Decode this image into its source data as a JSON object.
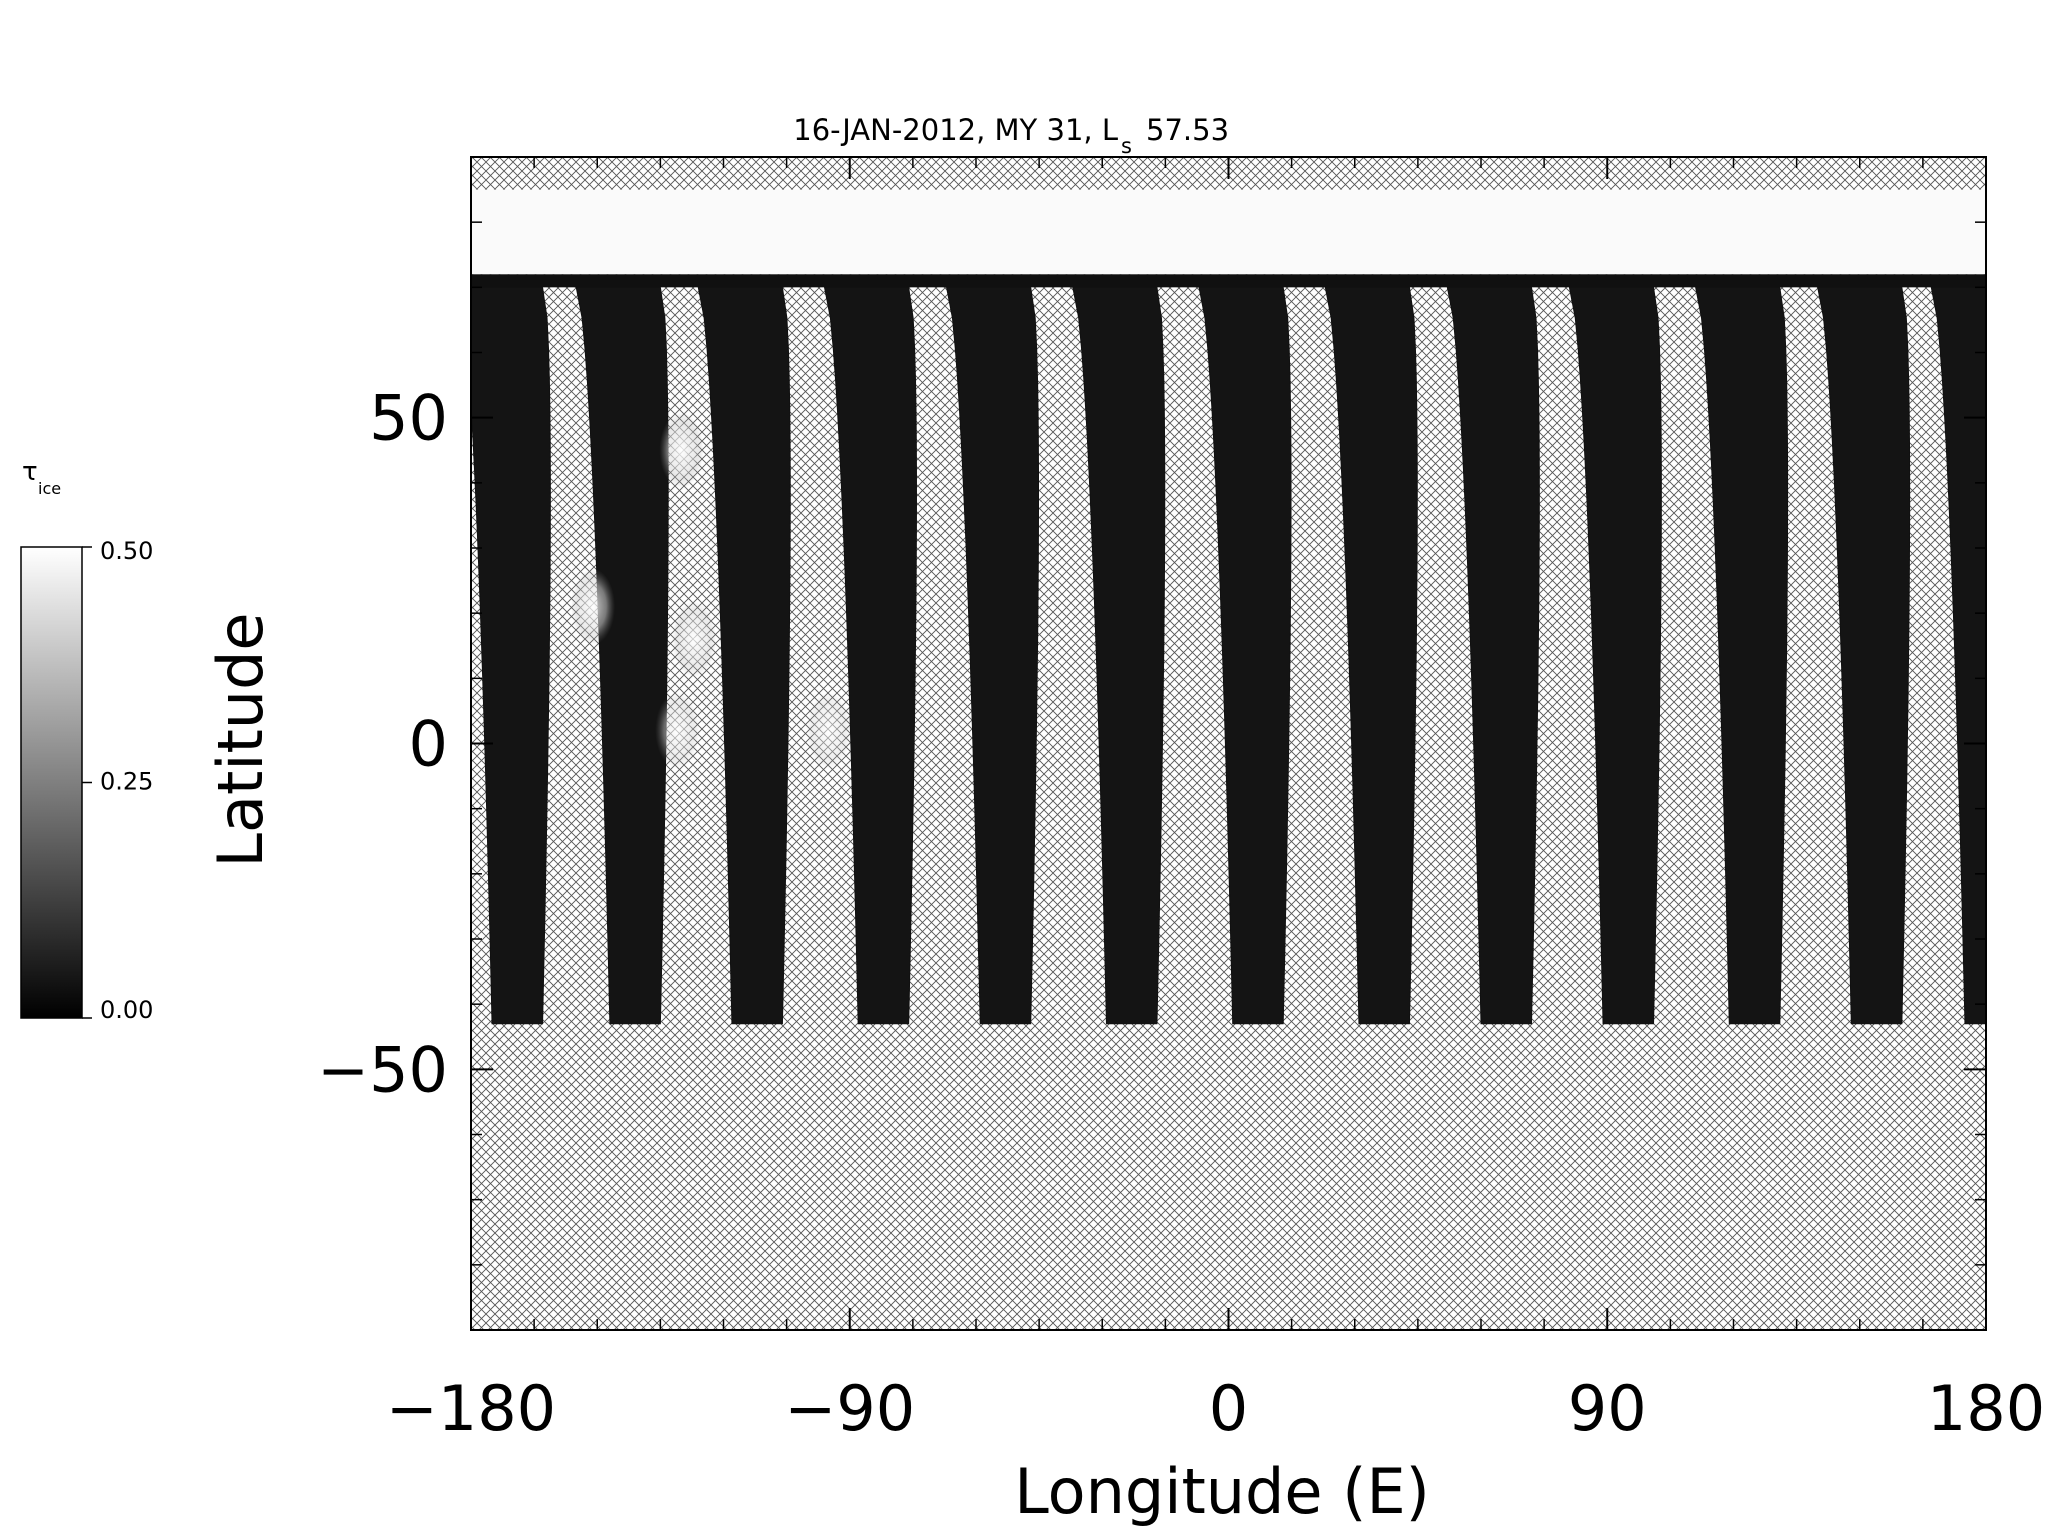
{
  "chart_data": {
    "type": "heatmap",
    "title": "16-JAN-2012, MY 31,  L",
    "title_subscript": "s",
    "title_value": "57.53",
    "xlabel": "Longitude (E)",
    "ylabel": "Latitude",
    "xlim": [
      -180,
      180
    ],
    "ylim": [
      -90,
      90
    ],
    "x_ticks": [
      -180,
      -90,
      0,
      90,
      180
    ],
    "x_tick_labels": [
      "−180",
      "−90",
      "0",
      "90",
      "180"
    ],
    "y_ticks": [
      -50,
      0,
      50
    ],
    "y_tick_labels": [
      "−50",
      "0",
      "50"
    ],
    "colormap": "grayscale",
    "colorbar": {
      "label": "τ",
      "label_subscript": "ice",
      "min": 0.0,
      "max": 0.5,
      "ticks": [
        0.0,
        0.25,
        0.5
      ],
      "tick_labels": [
        "0.00",
        "0.25",
        "0.50"
      ]
    },
    "no_data_fill": "crosshatch",
    "polar_cap": {
      "lat_min": 72,
      "lat_max": 85,
      "value": 0.49
    },
    "swath_north_lat": 70,
    "swath_south_lat": -43,
    "swath_longitudes_at_north": [
      -173,
      -145,
      -116,
      -86,
      -57,
      -27,
      3,
      33,
      62,
      91,
      121,
      150,
      177
    ],
    "swath_typical_value": 0.04,
    "bright_cloud_features": [
      {
        "lon": -130,
        "lat": 45,
        "value": 0.45
      },
      {
        "lon": -151,
        "lat": 21,
        "value": 0.42
      },
      {
        "lon": -127,
        "lat": 16,
        "value": 0.38
      },
      {
        "lon": -131,
        "lat": 2,
        "value": 0.35
      },
      {
        "lon": -95,
        "lat": 2,
        "value": 0.3
      }
    ]
  }
}
